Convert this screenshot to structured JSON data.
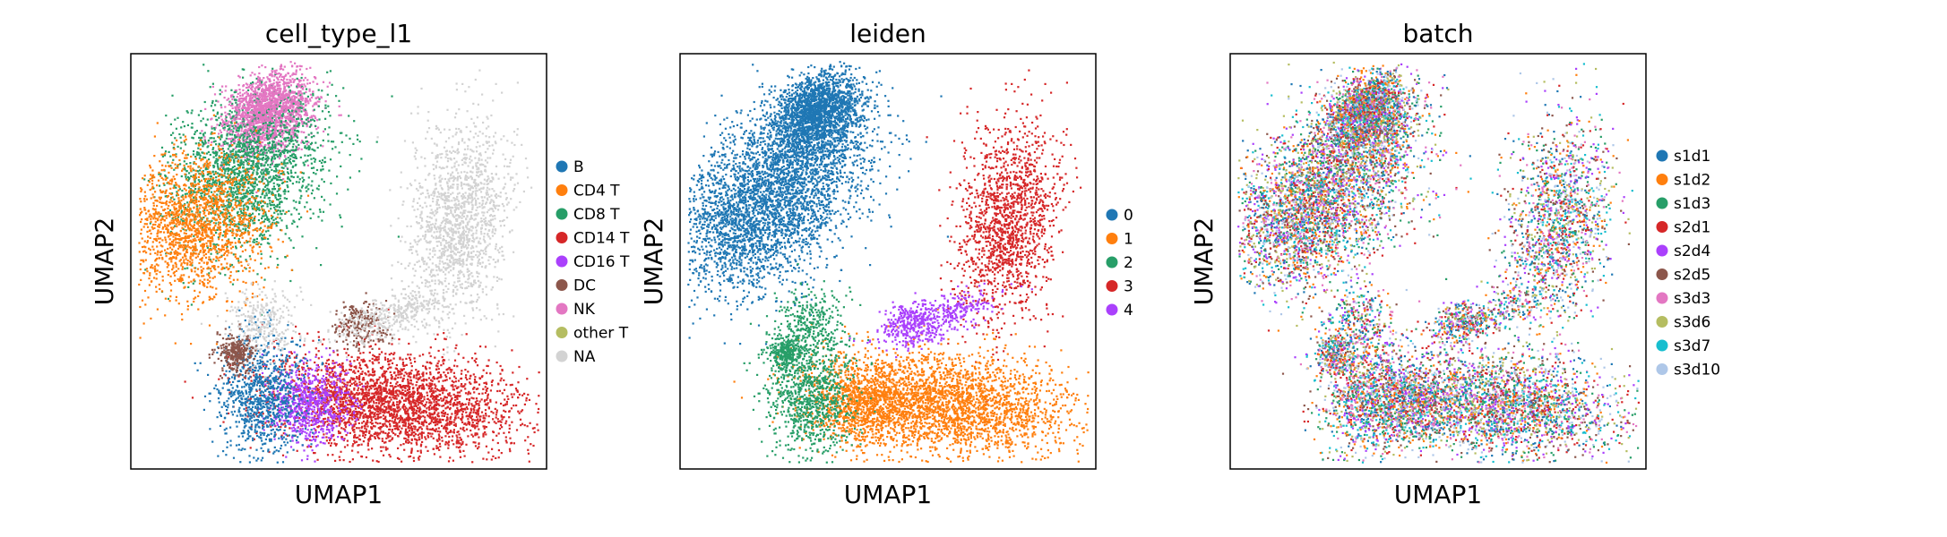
{
  "figure": {
    "background": "#ffffff"
  },
  "chart_data": [
    {
      "type": "scatter",
      "title": "cell_type_l1",
      "xlabel": "UMAP1",
      "ylabel": "UMAP2",
      "ticks": "none",
      "grid": false,
      "legend": {
        "placement": "right",
        "entries": [
          {
            "label": "B",
            "color": "#1f77b4"
          },
          {
            "label": "CD4 T",
            "color": "#ff7f0e"
          },
          {
            "label": "CD8 T",
            "color": "#279e68"
          },
          {
            "label": "CD14 T",
            "color": "#d62728"
          },
          {
            "label": "CD16 T",
            "color": "#aa40fc"
          },
          {
            "label": "DC",
            "color": "#8c564b"
          },
          {
            "label": "NK",
            "color": "#e377c2"
          },
          {
            "label": "other T",
            "color": "#b5bd61"
          },
          {
            "label": "NA",
            "color": "#d3d3d3"
          }
        ]
      }
    },
    {
      "type": "scatter",
      "title": "leiden",
      "xlabel": "UMAP1",
      "ylabel": "UMAP2",
      "ticks": "none",
      "grid": false,
      "legend": {
        "placement": "right",
        "entries": [
          {
            "label": "0",
            "color": "#1f77b4"
          },
          {
            "label": "1",
            "color": "#ff7f0e"
          },
          {
            "label": "2",
            "color": "#279e68"
          },
          {
            "label": "3",
            "color": "#d62728"
          },
          {
            "label": "4",
            "color": "#aa40fc"
          }
        ]
      }
    },
    {
      "type": "scatter",
      "title": "batch",
      "xlabel": "UMAP1",
      "ylabel": "UMAP2",
      "ticks": "none",
      "grid": false,
      "legend": {
        "placement": "right",
        "entries": [
          {
            "label": "s1d1",
            "color": "#1f77b4"
          },
          {
            "label": "s1d2",
            "color": "#ff7f0e"
          },
          {
            "label": "s1d3",
            "color": "#279e68"
          },
          {
            "label": "s2d1",
            "color": "#d62728"
          },
          {
            "label": "s2d4",
            "color": "#aa40fc"
          },
          {
            "label": "s2d5",
            "color": "#8c564b"
          },
          {
            "label": "s3d3",
            "color": "#e377c2"
          },
          {
            "label": "s3d6",
            "color": "#b5bd61"
          },
          {
            "label": "s3d7",
            "color": "#17becf"
          },
          {
            "label": "s3d10",
            "color": "#aec7e8"
          }
        ]
      }
    }
  ]
}
